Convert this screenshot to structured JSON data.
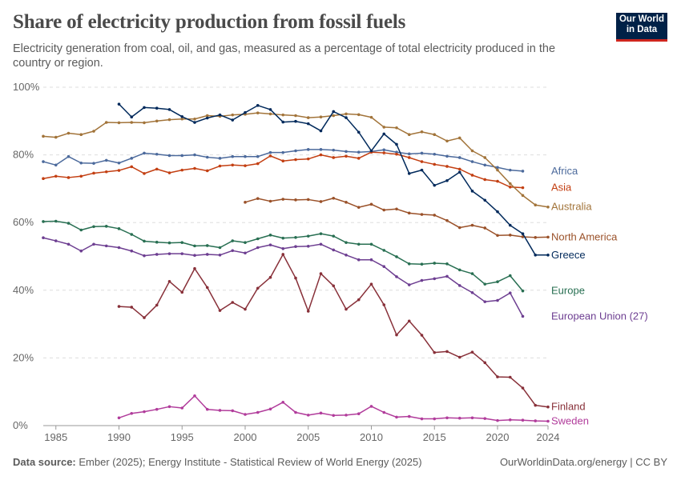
{
  "header": {
    "title": "Share of electricity production from fossil fuels",
    "subtitle": "Electricity generation from coal, oil, and gas, measured as a percentage of total electricity produced in the country or region."
  },
  "logo": {
    "line1": "Our World",
    "line2": "in Data"
  },
  "footer": {
    "source_label": "Data source:",
    "source_text": " Ember (2025); Energy Institute - Statistical Review of World Energy (2025)",
    "right_text": "OurWorldinData.org/energy | CC BY"
  },
  "chart_data": {
    "type": "line",
    "xlim": [
      1984,
      2024
    ],
    "ylim": [
      0,
      100
    ],
    "xticks": [
      1985,
      1990,
      1995,
      2000,
      2005,
      2010,
      2015,
      2020,
      2024
    ],
    "yticks": [
      0,
      20,
      40,
      60,
      80,
      100
    ],
    "ytick_labels": [
      "0%",
      "20%",
      "40%",
      "60%",
      "80%",
      "100%"
    ],
    "grid": true,
    "legend": "inline-right",
    "series": [
      {
        "name": "Africa",
        "color": "#4c6a9c",
        "start": 1984,
        "values": [
          78.0,
          77.0,
          79.5,
          77.6,
          77.5,
          78.4,
          77.6,
          79.0,
          80.5,
          80.2,
          79.8,
          79.8,
          80.0,
          79.3,
          79.0,
          79.5,
          79.5,
          79.5,
          80.7,
          80.7,
          81.2,
          81.6,
          81.6,
          81.4,
          81.0,
          80.8,
          81.0,
          81.5,
          80.8,
          80.3,
          80.5,
          80.2,
          79.6,
          79.2,
          78.0,
          77.0,
          76.3,
          75.5,
          75.2
        ]
      },
      {
        "name": "Asia",
        "color": "#c33f12",
        "start": 1984,
        "values": [
          73.0,
          73.7,
          73.3,
          73.7,
          74.6,
          75.0,
          75.4,
          76.5,
          74.5,
          75.8,
          74.7,
          75.5,
          76.0,
          75.3,
          76.7,
          77.0,
          76.8,
          77.4,
          79.7,
          78.2,
          78.6,
          78.8,
          80.0,
          79.2,
          79.6,
          79.0,
          80.8,
          80.6,
          80.2,
          79.2,
          78.0,
          77.2,
          76.6,
          75.8,
          74.0,
          72.7,
          72.2,
          70.5,
          70.3
        ]
      },
      {
        "name": "Australia",
        "color": "#a2743a",
        "start": 1984,
        "values": [
          85.5,
          85.2,
          86.4,
          86.0,
          87.0,
          89.6,
          89.5,
          89.6,
          89.5,
          90.0,
          90.4,
          90.6,
          90.6,
          91.6,
          91.4,
          91.8,
          92.0,
          92.4,
          92.1,
          91.8,
          91.6,
          91.0,
          91.2,
          91.6,
          92.1,
          91.9,
          91.1,
          88.2,
          88.0,
          86.0,
          86.8,
          86.0,
          84.1,
          85.0,
          81.2,
          79.2,
          75.5,
          71.5,
          68.0,
          65.2,
          64.6
        ]
      },
      {
        "name": "North America",
        "color": "#9a5129",
        "start": 2000,
        "values": [
          66.0,
          67.1,
          66.3,
          66.9,
          66.7,
          66.8,
          66.2,
          67.2,
          66.0,
          64.5,
          65.4,
          63.7,
          64.0,
          62.8,
          62.4,
          62.2,
          60.6,
          58.5,
          59.2,
          58.4,
          56.2,
          56.3,
          55.8,
          55.6,
          55.7
        ]
      },
      {
        "name": "Greece",
        "color": "#00295b",
        "start": 1990,
        "values": [
          95.0,
          91.2,
          94.0,
          93.8,
          93.4,
          91.3,
          89.6,
          90.9,
          91.8,
          90.3,
          92.5,
          94.6,
          93.4,
          89.7,
          89.9,
          89.2,
          87.1,
          92.8,
          91.0,
          86.7,
          81.2,
          86.2,
          83.1,
          74.5,
          75.5,
          71.0,
          72.4,
          74.9,
          69.3,
          66.6,
          63.2,
          59.2,
          56.7,
          50.4,
          50.4
        ]
      },
      {
        "name": "Europe",
        "color": "#286f52",
        "start": 1984,
        "values": [
          60.3,
          60.4,
          59.8,
          57.8,
          58.8,
          58.9,
          58.2,
          56.5,
          54.5,
          54.2,
          54.0,
          54.1,
          53.1,
          53.2,
          52.6,
          54.6,
          54.1,
          55.2,
          56.3,
          55.4,
          55.6,
          56.0,
          56.7,
          56.0,
          54.1,
          53.6,
          53.6,
          51.8,
          49.9,
          47.8,
          47.7,
          48.0,
          47.8,
          46.0,
          44.9,
          41.8,
          42.5,
          44.3,
          39.8
        ]
      },
      {
        "name": "European Union (27)",
        "color": "#6d3e91",
        "start": 1984,
        "values": [
          55.5,
          54.6,
          53.6,
          51.6,
          53.6,
          53.1,
          52.6,
          51.6,
          50.2,
          50.6,
          50.8,
          50.8,
          50.3,
          50.6,
          50.4,
          51.7,
          51.0,
          52.6,
          53.4,
          52.3,
          52.9,
          53.0,
          53.6,
          51.9,
          50.4,
          49.0,
          49.0,
          47.0,
          44.0,
          41.6,
          42.9,
          43.4,
          44.1,
          41.4,
          39.3,
          36.6,
          37.0,
          39.2,
          32.3
        ]
      },
      {
        "name": "Finland",
        "color": "#883039",
        "start": 1990,
        "values": [
          35.2,
          35.0,
          31.9,
          35.6,
          42.6,
          39.4,
          46.4,
          40.8,
          34.0,
          36.4,
          34.4,
          40.6,
          43.8,
          50.6,
          43.6,
          33.8,
          44.9,
          41.3,
          34.4,
          37.2,
          41.8,
          35.7,
          26.8,
          30.9,
          26.7,
          21.6,
          21.9,
          20.2,
          21.7,
          18.6,
          14.4,
          14.3,
          11.1,
          6.0,
          5.5
        ]
      },
      {
        "name": "Sweden",
        "color": "#b13c9b",
        "start": 1990,
        "values": [
          2.3,
          3.6,
          4.1,
          4.8,
          5.6,
          5.2,
          8.8,
          4.8,
          4.5,
          4.4,
          3.3,
          3.9,
          4.9,
          6.9,
          3.9,
          3.1,
          3.7,
          3.0,
          3.1,
          3.5,
          5.7,
          3.9,
          2.5,
          2.7,
          2.0,
          2.0,
          2.3,
          2.2,
          2.3,
          2.1,
          1.5,
          1.7,
          1.6,
          1.4,
          1.3
        ]
      }
    ]
  }
}
